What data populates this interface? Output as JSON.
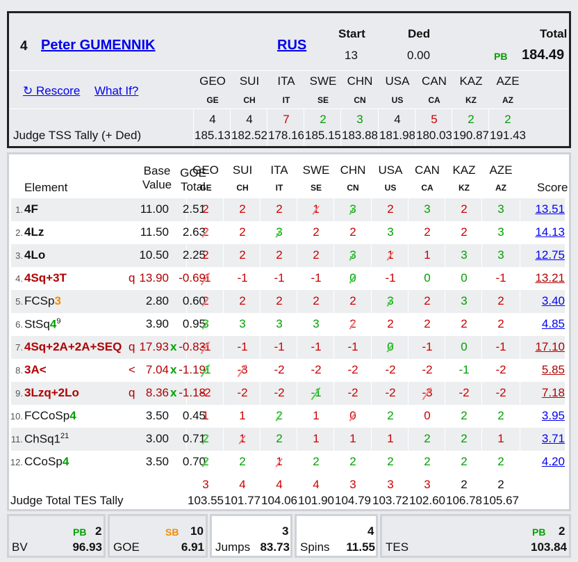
{
  "skater": {
    "rank": "4",
    "name": "Peter GUMENNIK",
    "nation": "RUS",
    "start_label": "Start",
    "start_value": "13",
    "ded_label": "Ded",
    "ded_value": "0.00",
    "total_label": "Total",
    "pb_label": "PB",
    "total_value": "184.49"
  },
  "actions": {
    "rescore": "Rescore",
    "what_if": "What If?"
  },
  "judges": [
    {
      "country": "GEO",
      "code": "GE"
    },
    {
      "country": "SUI",
      "code": "CH"
    },
    {
      "country": "ITA",
      "code": "IT"
    },
    {
      "country": "SWE",
      "code": "SE"
    },
    {
      "country": "CHN",
      "code": "CN"
    },
    {
      "country": "USA",
      "code": "US"
    },
    {
      "country": "CAN",
      "code": "CA"
    },
    {
      "country": "KAZ",
      "code": "KZ"
    },
    {
      "country": "AZE",
      "code": "AZ"
    }
  ],
  "tss_tally": {
    "label": "Judge TSS Tally (+ Ded)",
    "ranks": [
      "4",
      "4",
      "7",
      "2",
      "3",
      "4",
      "5",
      "2",
      "2"
    ],
    "rank_colors": [
      "#111",
      "#111",
      "#cc0000",
      "#00a000",
      "#00a000",
      "#111",
      "#cc0000",
      "#00a000",
      "#00a000"
    ],
    "values": [
      "185.13",
      "182.52",
      "178.16",
      "185.15",
      "183.88",
      "181.98",
      "180.03",
      "190.87",
      "191.43"
    ]
  },
  "table_header": {
    "element": "Element",
    "base_value_1": "Base",
    "base_value_2": "Value",
    "goe_total_1": "GOE",
    "goe_total_2": "Total",
    "score": "Score"
  },
  "elements": [
    {
      "num": "1.",
      "name": "4F",
      "name_color": "#111",
      "suffix": "",
      "flag": "",
      "bv": "11.00",
      "x": "",
      "goe": "2.51",
      "goe_color": "#111",
      "marks": [
        "2",
        "2",
        "2",
        "1",
        "3",
        "2",
        "3",
        "2",
        "3"
      ],
      "mark_colors": [
        "r",
        "r",
        "r",
        "r",
        "g",
        "r",
        "g",
        "r",
        "g"
      ],
      "strikes": [
        "",
        "",
        "",
        "red",
        "green",
        "",
        "",
        "",
        ""
      ],
      "score": "13.51",
      "score_color": "#0000ee"
    },
    {
      "num": "2.",
      "name": "4Lz",
      "name_color": "#111",
      "suffix": "",
      "flag": "",
      "bv": "11.50",
      "x": "",
      "goe": "2.63",
      "goe_color": "#111",
      "marks": [
        "2",
        "2",
        "3",
        "2",
        "2",
        "3",
        "2",
        "2",
        "3"
      ],
      "mark_colors": [
        "r",
        "r",
        "g",
        "r",
        "r",
        "g",
        "r",
        "r",
        "g"
      ],
      "strikes": [
        "red",
        "",
        "green",
        "",
        "",
        "",
        "",
        "",
        ""
      ],
      "score": "14.13",
      "score_color": "#0000ee"
    },
    {
      "num": "3.",
      "name": "4Lo",
      "name_color": "#111",
      "suffix": "",
      "flag": "",
      "bv": "10.50",
      "x": "",
      "goe": "2.25",
      "goe_color": "#111",
      "marks": [
        "2",
        "2",
        "2",
        "2",
        "3",
        "1",
        "1",
        "3",
        "3"
      ],
      "mark_colors": [
        "r",
        "r",
        "r",
        "r",
        "g",
        "r",
        "r",
        "g",
        "g"
      ],
      "strikes": [
        "",
        "",
        "",
        "",
        "green",
        "red",
        "",
        "",
        ""
      ],
      "score": "12.75",
      "score_color": "#0000ee"
    },
    {
      "num": "4.",
      "name": "4Sq+3T",
      "name_color": "#b00000",
      "suffix": "",
      "flag": "q",
      "bv": "13.90",
      "x": "",
      "goe": "-0.69",
      "goe_color": "#b00000",
      "marks": [
        "-1",
        "-1",
        "-1",
        "-1",
        "0",
        "-1",
        "0",
        "0",
        "-1"
      ],
      "mark_colors": [
        "r",
        "r",
        "r",
        "r",
        "g",
        "r",
        "g",
        "g",
        "r"
      ],
      "strikes": [
        "red",
        "",
        "",
        "",
        "green",
        "",
        "",
        "",
        ""
      ],
      "score": "13.21",
      "score_color": "#b00000"
    },
    {
      "num": "5.",
      "name": "FCSp",
      "name_color": "#111",
      "suffix": "3",
      "suffix_color": "#f28c00",
      "flag": "",
      "bv": "2.80",
      "x": "",
      "goe": "0.60",
      "goe_color": "#111",
      "marks": [
        "2",
        "2",
        "2",
        "2",
        "2",
        "3",
        "2",
        "3",
        "2"
      ],
      "mark_colors": [
        "r",
        "r",
        "r",
        "r",
        "r",
        "g",
        "r",
        "g",
        "r"
      ],
      "strikes": [
        "red",
        "",
        "",
        "",
        "",
        "green",
        "",
        "",
        ""
      ],
      "score": "3.40",
      "score_color": "#0000ee"
    },
    {
      "num": "6.",
      "name": "StSq",
      "name_color": "#111",
      "suffix": "4",
      "suffix_color": "#00a000",
      "sup": "9",
      "flag": "",
      "bv": "3.90",
      "x": "",
      "goe": "0.95",
      "goe_color": "#111",
      "marks": [
        "3",
        "3",
        "3",
        "3",
        "2",
        "2",
        "2",
        "2",
        "2"
      ],
      "mark_colors": [
        "g",
        "g",
        "g",
        "g",
        "r",
        "r",
        "r",
        "r",
        "r"
      ],
      "strikes": [
        "green",
        "",
        "",
        "",
        "red",
        "",
        "",
        "",
        ""
      ],
      "score": "4.85",
      "score_color": "#0000ee"
    },
    {
      "num": "7.",
      "name": "4Sq+2A+2A+SEQ",
      "name_color": "#b00000",
      "suffix": "",
      "flag": "q",
      "bv": "17.93",
      "x": "x",
      "goe": "-0.83",
      "goe_color": "#b00000",
      "marks": [
        "-1",
        "-1",
        "-1",
        "-1",
        "-1",
        "0",
        "-1",
        "0",
        "-1"
      ],
      "mark_colors": [
        "r",
        "r",
        "r",
        "r",
        "r",
        "g",
        "r",
        "g",
        "r"
      ],
      "strikes": [
        "red",
        "",
        "",
        "",
        "",
        "green",
        "",
        "",
        ""
      ],
      "score": "17.10",
      "score_color": "#b00000"
    },
    {
      "num": "8.",
      "name": "3A<",
      "name_color": "#b00000",
      "suffix": "",
      "flag": "<",
      "bv": "7.04",
      "x": "x",
      "goe": "-1.19",
      "goe_color": "#b00000",
      "marks": [
        "-1",
        "-3",
        "-2",
        "-2",
        "-2",
        "-2",
        "-2",
        "-1",
        "-2"
      ],
      "mark_colors": [
        "g",
        "r",
        "r",
        "r",
        "r",
        "r",
        "r",
        "g",
        "r"
      ],
      "strikes": [
        "green",
        "red",
        "",
        "",
        "",
        "",
        "",
        "",
        ""
      ],
      "score": "5.85",
      "score_color": "#b00000"
    },
    {
      "num": "9.",
      "name": "3Lzq+2Lo",
      "name_color": "#b00000",
      "suffix": "",
      "flag": "q",
      "bv": "8.36",
      "x": "x",
      "goe": "-1.18",
      "goe_color": "#b00000",
      "marks": [
        "-2",
        "-2",
        "-2",
        "-1",
        "-2",
        "-2",
        "-3",
        "-2",
        "-2"
      ],
      "mark_colors": [
        "r",
        "r",
        "r",
        "g",
        "r",
        "r",
        "r",
        "r",
        "r"
      ],
      "strikes": [
        "",
        "",
        "",
        "green",
        "",
        "",
        "red",
        "",
        ""
      ],
      "score": "7.18",
      "score_color": "#b00000"
    },
    {
      "num": "10.",
      "name": "FCCoSp",
      "name_color": "#111",
      "suffix": "4",
      "suffix_color": "#00a000",
      "flag": "",
      "bv": "3.50",
      "x": "",
      "goe": "0.45",
      "goe_color": "#111",
      "marks": [
        "1",
        "1",
        "2",
        "1",
        "0",
        "2",
        "0",
        "2",
        "2"
      ],
      "mark_colors": [
        "r",
        "r",
        "g",
        "r",
        "r",
        "g",
        "r",
        "g",
        "g"
      ],
      "strikes": [
        "",
        "",
        "green",
        "",
        "red",
        "",
        "",
        "",
        ""
      ],
      "score": "3.95",
      "score_color": "#0000ee"
    },
    {
      "num": "11.",
      "name": "ChSq1",
      "name_color": "#111",
      "suffix": "",
      "sup": "21",
      "flag": "",
      "bv": "3.00",
      "x": "",
      "goe": "0.71",
      "goe_color": "#111",
      "marks": [
        "2",
        "1",
        "2",
        "1",
        "1",
        "1",
        "2",
        "2",
        "1"
      ],
      "mark_colors": [
        "g",
        "r",
        "g",
        "r",
        "r",
        "r",
        "g",
        "g",
        "r"
      ],
      "strikes": [
        "green",
        "red",
        "",
        "",
        "",
        "",
        "",
        "",
        ""
      ],
      "score": "3.71",
      "score_color": "#0000ee"
    },
    {
      "num": "12.",
      "name": "CCoSp",
      "name_color": "#111",
      "suffix": "4",
      "suffix_color": "#00a000",
      "flag": "",
      "bv": "3.50",
      "x": "",
      "goe": "0.70",
      "goe_color": "#111",
      "marks": [
        "2",
        "2",
        "1",
        "2",
        "2",
        "2",
        "2",
        "2",
        "2"
      ],
      "mark_colors": [
        "g",
        "g",
        "r",
        "g",
        "g",
        "g",
        "g",
        "g",
        "g"
      ],
      "strikes": [
        "green",
        "",
        "red",
        "",
        "",
        "",
        "",
        "",
        ""
      ],
      "score": "4.20",
      "score_color": "#0000ee"
    }
  ],
  "tes_tally": {
    "label": "Judge Total TES Tally",
    "ranks": [
      "3",
      "4",
      "4",
      "4",
      "3",
      "3",
      "3",
      "2",
      "2"
    ],
    "rank_colors": [
      "#cc0000",
      "#cc0000",
      "#cc0000",
      "#cc0000",
      "#cc0000",
      "#cc0000",
      "#cc0000",
      "#111",
      "#111"
    ],
    "values": [
      "103.55",
      "101.77",
      "104.06",
      "101.90",
      "104.79",
      "103.72",
      "102.60",
      "106.78",
      "105.67"
    ]
  },
  "summary": {
    "bv": {
      "label": "BV",
      "badge": "PB",
      "rank": "2",
      "value": "96.93"
    },
    "goe": {
      "label": "GOE",
      "badge": "SB",
      "rank": "10",
      "value": "6.91"
    },
    "jumps": {
      "label": "Jumps",
      "rank": "3",
      "value": "83.73"
    },
    "spins": {
      "label": "Spins",
      "rank": "4",
      "value": "11.55"
    },
    "tes": {
      "label": "TES",
      "badge": "PB",
      "rank": "2",
      "value": "103.84"
    }
  },
  "colors": {
    "red_mark": "#cc0000",
    "green_mark": "#00a000",
    "link": "#0000ee"
  }
}
